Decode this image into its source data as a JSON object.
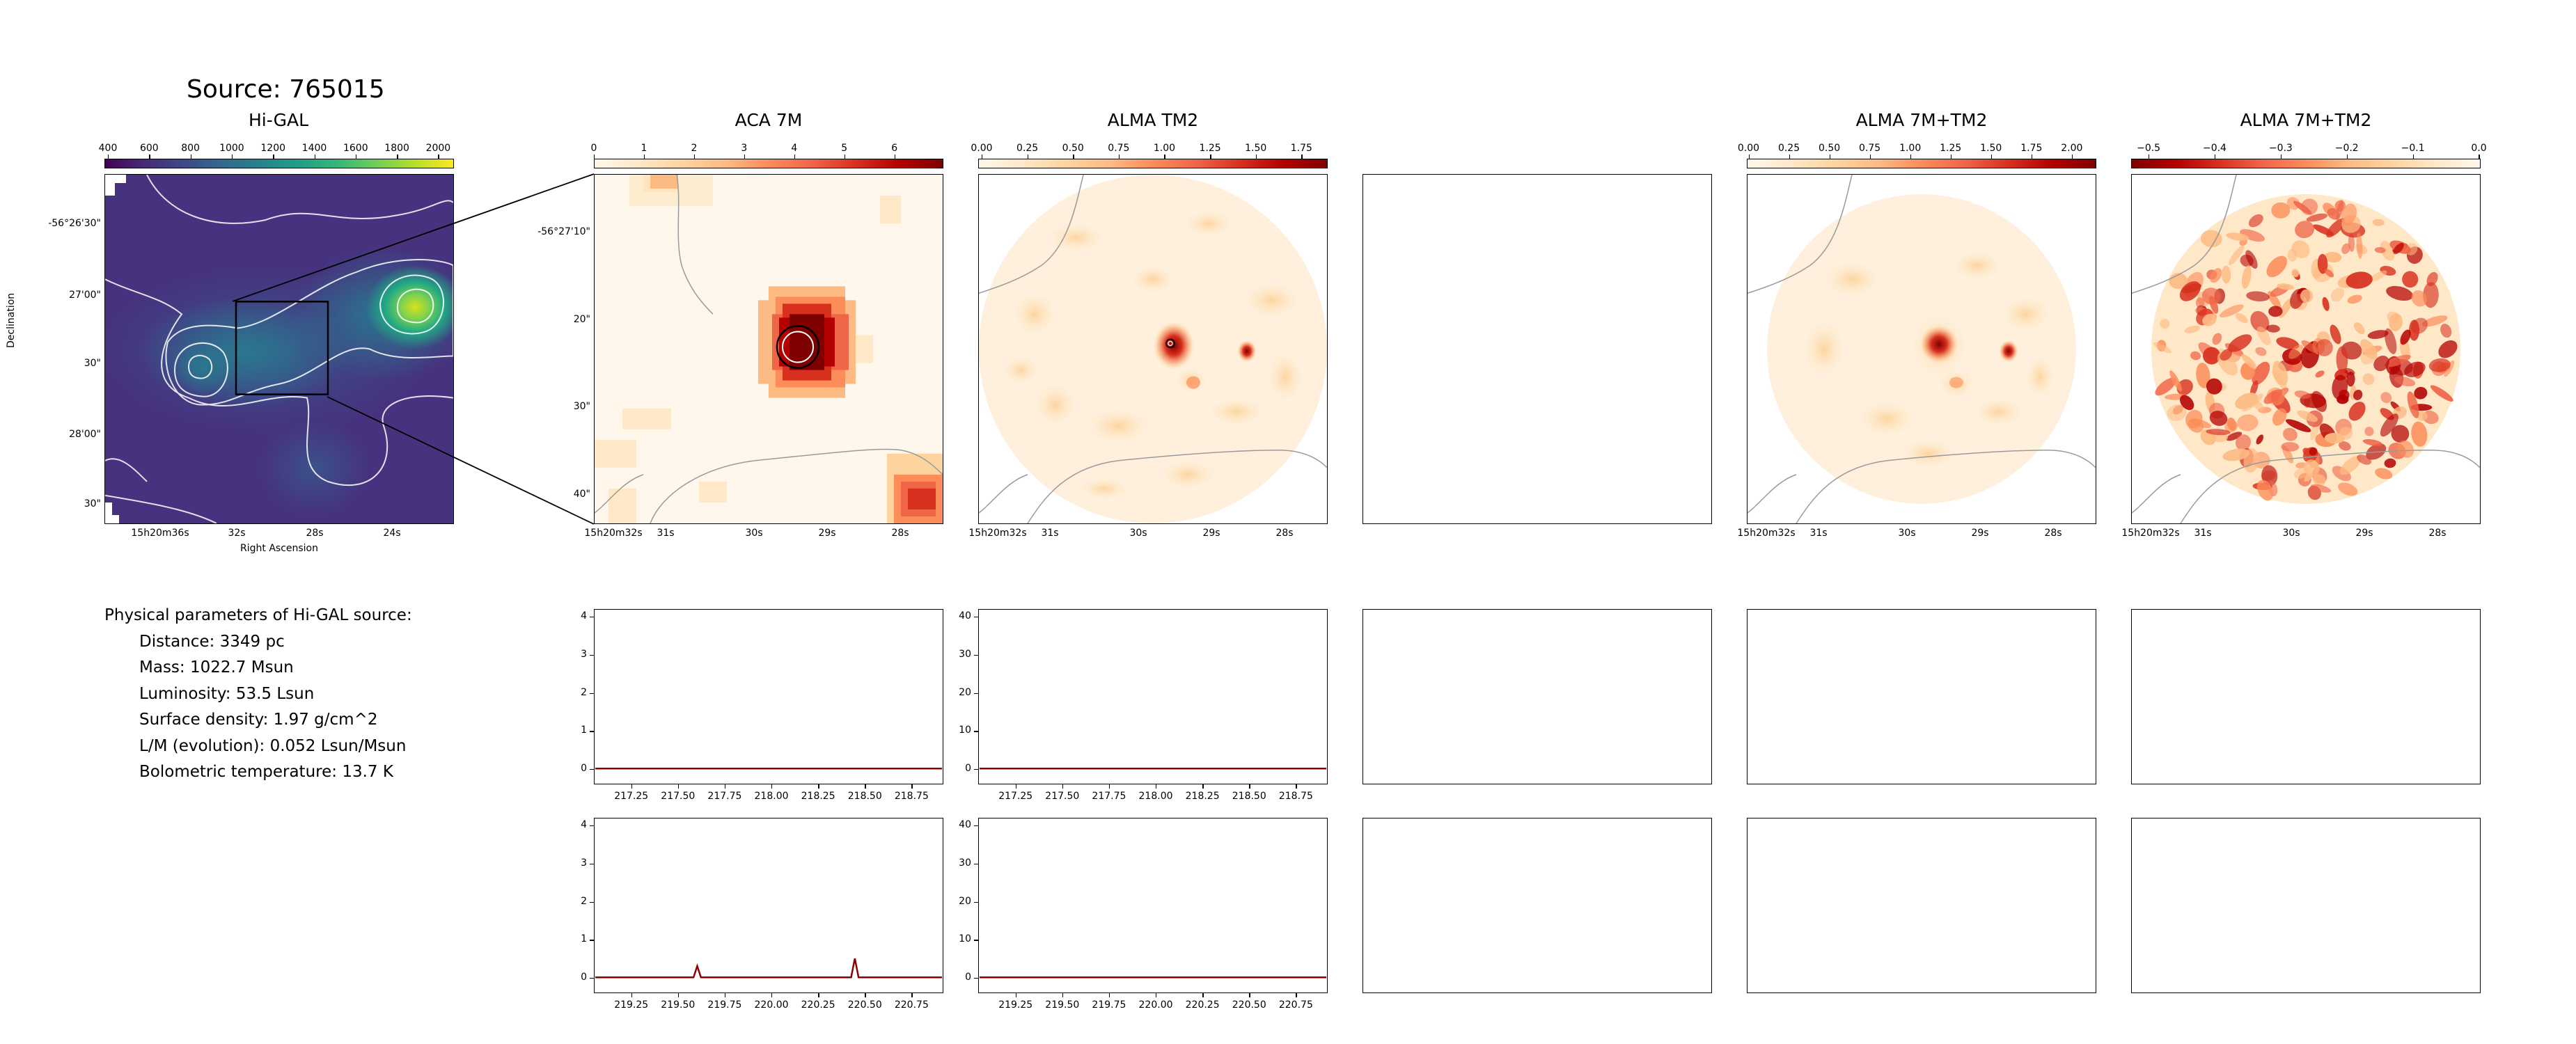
{
  "source_title": "Source: 765015",
  "panels": {
    "higal": {
      "title": "Hi-GAL",
      "colorbar_ticks": [
        "400",
        "600",
        "800",
        "1000",
        "1200",
        "1400",
        "1600",
        "1800",
        "2000"
      ],
      "dec_ticks": [
        "-56°26'30\"",
        "27'00\"",
        "30\"",
        "28'00\"",
        "30\""
      ],
      "ra_ticks": [
        "15h20m36s",
        "32s",
        "28s",
        "24s"
      ],
      "xlabel": "Right Ascension",
      "ylabel": "Declination",
      "colormap": "viridis"
    },
    "aca7m": {
      "title": "ACA 7M",
      "colorbar_ticks": [
        "0",
        "1",
        "2",
        "3",
        "4",
        "5",
        "6"
      ],
      "dec_ticks": [
        "-56°27'10\"",
        "20\"",
        "30\"",
        "40\""
      ],
      "ra_ticks": [
        "15h20m32s",
        "31s",
        "30s",
        "29s",
        "28s"
      ],
      "colormap": "OrRd"
    },
    "tm2": {
      "title": "ALMA TM2",
      "colorbar_ticks": [
        "0.00",
        "0.25",
        "0.50",
        "0.75",
        "1.00",
        "1.25",
        "1.50",
        "1.75"
      ],
      "ra_ticks": [
        "15h20m32s",
        "31s",
        "30s",
        "29s",
        "28s"
      ]
    },
    "combo": {
      "title": "ALMA 7M+TM2",
      "colorbar_ticks": [
        "0.00",
        "0.25",
        "0.50",
        "0.75",
        "1.00",
        "1.25",
        "1.50",
        "1.75",
        "2.00"
      ],
      "ra_ticks": [
        "15h20m32s",
        "31s",
        "30s",
        "29s",
        "28s"
      ]
    },
    "combo_neg": {
      "title": "ALMA 7M+TM2",
      "colorbar_ticks": [
        "−0.5",
        "−0.4",
        "−0.3",
        "−0.2",
        "−0.1",
        "0.0"
      ],
      "ra_ticks": [
        "15h20m32s",
        "31s",
        "30s",
        "29s",
        "28s"
      ]
    }
  },
  "params": {
    "heading": "Physical parameters of Hi-GAL source:",
    "distance": "Distance: 3349 pc",
    "mass": "Mass: 1022.7 Msun",
    "luminosity": "Luminosity: 53.5 Lsun",
    "surface_density": "Surface density: 1.97 g/cm^2",
    "lm": "L/M (evolution): 0.052 Lsun/Msun",
    "tbol": "Bolometric temperature: 13.7 K"
  },
  "colors": {
    "spectrum": "#8b0000",
    "contour": "#ffffff",
    "outline": "#000000"
  },
  "chart_data": [
    {
      "type": "line",
      "title": "",
      "xlabel": "",
      "ylabel": "",
      "x_ticks": [
        217.25,
        217.5,
        217.75,
        218.0,
        218.25,
        218.5,
        218.75
      ],
      "x_tick_labels": [
        "217.25",
        "217.50",
        "217.75",
        "218.00",
        "218.25",
        "218.50",
        "218.75"
      ],
      "y_ticks": [
        0,
        1,
        2,
        3,
        4
      ],
      "y_tick_labels": [
        "0",
        "1",
        "2",
        "3",
        "4"
      ],
      "xlim": [
        217.05,
        218.92
      ],
      "ylim": [
        -0.4,
        4.2
      ],
      "series": [
        {
          "x": [
            217.05,
            217.4,
            217.8,
            218.2,
            218.6,
            218.92
          ],
          "y": [
            0,
            0,
            0,
            0,
            0,
            0
          ]
        }
      ]
    },
    {
      "type": "line",
      "title": "",
      "xlabel": "",
      "ylabel": "",
      "x_ticks": [
        217.25,
        217.5,
        217.75,
        218.0,
        218.25,
        218.5,
        218.75
      ],
      "x_tick_labels": [
        "217.25",
        "217.50",
        "217.75",
        "218.00",
        "218.25",
        "218.50",
        "218.75"
      ],
      "y_ticks": [
        0,
        10,
        20,
        30,
        40
      ],
      "y_tick_labels": [
        "0",
        "10",
        "20",
        "30",
        "40"
      ],
      "xlim": [
        217.05,
        218.92
      ],
      "ylim": [
        -4,
        42
      ],
      "series": [
        {
          "x": [
            217.05,
            217.4,
            217.8,
            218.2,
            218.6,
            218.92
          ],
          "y": [
            0,
            0,
            0,
            0,
            0,
            0
          ]
        }
      ]
    },
    {
      "type": "line",
      "title": "",
      "xlabel": "",
      "ylabel": "",
      "x_ticks": [
        219.25,
        219.5,
        219.75,
        220.0,
        220.25,
        220.5,
        220.75
      ],
      "x_tick_labels": [
        "219.25",
        "219.50",
        "219.75",
        "220.00",
        "220.25",
        "220.50",
        "220.75"
      ],
      "y_ticks": [
        0,
        1,
        2,
        3,
        4
      ],
      "y_tick_labels": [
        "0",
        "1",
        "2",
        "3",
        "4"
      ],
      "xlim": [
        219.05,
        220.92
      ],
      "ylim": [
        -0.4,
        4.2
      ],
      "series": [
        {
          "x": [
            219.05,
            219.58,
            219.6,
            219.62,
            220.0,
            220.43,
            220.45,
            220.47,
            220.92
          ],
          "y": [
            0,
            0,
            0.3,
            0,
            0,
            0,
            0.5,
            0,
            0
          ]
        }
      ]
    },
    {
      "type": "line",
      "title": "",
      "xlabel": "",
      "ylabel": "",
      "x_ticks": [
        219.25,
        219.5,
        219.75,
        220.0,
        220.25,
        220.5,
        220.75
      ],
      "x_tick_labels": [
        "219.25",
        "219.50",
        "219.75",
        "220.00",
        "220.25",
        "220.50",
        "220.75"
      ],
      "y_ticks": [
        0,
        10,
        20,
        30,
        40
      ],
      "y_tick_labels": [
        "0",
        "10",
        "20",
        "30",
        "40"
      ],
      "xlim": [
        219.05,
        220.92
      ],
      "ylim": [
        -4,
        42
      ],
      "series": [
        {
          "x": [
            219.05,
            219.5,
            220.0,
            220.5,
            220.92
          ],
          "y": [
            0,
            0,
            0,
            0,
            0
          ]
        }
      ]
    }
  ]
}
